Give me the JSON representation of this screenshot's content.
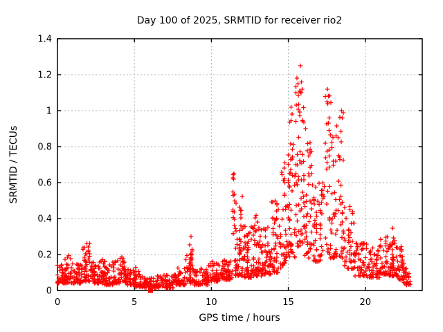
{
  "window": {
    "title": "Day 100 of 2025, SRMTID for receiver rio2"
  },
  "chart_data": {
    "type": "scatter",
    "title": "Day 100 of 2025, SRMTID for receiver rio2",
    "xlabel": "GPS time / hours",
    "ylabel": "SRMTID / TECUs",
    "xlim": [
      0,
      23.7
    ],
    "ylim": [
      0,
      1.4
    ],
    "xticks": [
      0,
      5,
      10,
      15,
      20
    ],
    "xtick_labels": [
      "0",
      "5",
      "10",
      "15",
      "20"
    ],
    "yticks": [
      0,
      0.2,
      0.4,
      0.6,
      0.8,
      1,
      1.2,
      1.4
    ],
    "ytick_labels": [
      "0",
      "0.2",
      "0.4",
      "0.6",
      "0.8",
      "1",
      "1.2",
      "1.4"
    ],
    "grid": true,
    "legend": "none",
    "marker": "plus",
    "marker_color": "#ff0000",
    "grid_color": "#b0b0b0",
    "border_color": "#000000",
    "series_name": "SRMTID for receiver rio2",
    "clusters_format": [
      "x_start_hours",
      "x_end_hours",
      "n_points",
      "y_min_TECU",
      "y_max_TECU",
      "low_bias_exponent"
    ],
    "clusters": [
      [
        0.0,
        0.45,
        35,
        0.04,
        0.16,
        2.0
      ],
      [
        0.45,
        0.95,
        40,
        0.04,
        0.2,
        2.2
      ],
      [
        0.95,
        1.55,
        45,
        0.04,
        0.15,
        2.0
      ],
      [
        1.55,
        2.1,
        45,
        0.05,
        0.27,
        2.0
      ],
      [
        2.1,
        2.55,
        35,
        0.04,
        0.16,
        2.0
      ],
      [
        2.55,
        3.05,
        38,
        0.04,
        0.2,
        2.2
      ],
      [
        3.05,
        3.6,
        42,
        0.03,
        0.16,
        2.0
      ],
      [
        3.6,
        4.05,
        32,
        0.04,
        0.19,
        2.0
      ],
      [
        4.05,
        4.4,
        26,
        0.05,
        0.22,
        2.0
      ],
      [
        4.4,
        5.1,
        50,
        0.03,
        0.13,
        2.0
      ],
      [
        5.1,
        5.6,
        35,
        0.02,
        0.11,
        2.0
      ],
      [
        5.6,
        6.6,
        65,
        0.015,
        0.08,
        1.8
      ],
      [
        6.6,
        7.6,
        65,
        0.015,
        0.09,
        1.8
      ],
      [
        7.6,
        8.3,
        48,
        0.03,
        0.13,
        2.0
      ],
      [
        8.3,
        8.85,
        38,
        0.04,
        0.2,
        2.2
      ],
      [
        8.6,
        8.78,
        12,
        0.12,
        0.3,
        1.2
      ],
      [
        8.85,
        9.8,
        60,
        0.03,
        0.13,
        2.0
      ],
      [
        9.8,
        10.6,
        55,
        0.05,
        0.16,
        2.0
      ],
      [
        10.6,
        11.35,
        55,
        0.06,
        0.2,
        2.0
      ],
      [
        11.38,
        11.55,
        16,
        0.12,
        0.66,
        1.2
      ],
      [
        11.55,
        12.05,
        48,
        0.08,
        0.4,
        2.2
      ],
      [
        11.82,
        11.97,
        10,
        0.2,
        0.56,
        1.2
      ],
      [
        12.05,
        12.7,
        55,
        0.07,
        0.38,
        2.4
      ],
      [
        12.7,
        13.3,
        50,
        0.08,
        0.42,
        2.4
      ],
      [
        13.3,
        13.9,
        50,
        0.09,
        0.38,
        2.2
      ],
      [
        13.9,
        14.5,
        50,
        0.1,
        0.52,
        2.2
      ],
      [
        14.5,
        15.0,
        46,
        0.14,
        0.72,
        1.8
      ],
      [
        15.0,
        15.45,
        42,
        0.18,
        1.02,
        1.6
      ],
      [
        15.45,
        15.78,
        32,
        0.22,
        1.18,
        1.5
      ],
      [
        15.78,
        16.05,
        28,
        0.25,
        1.2,
        1.6
      ],
      [
        16.05,
        16.55,
        40,
        0.18,
        0.92,
        1.8
      ],
      [
        16.55,
        17.25,
        52,
        0.16,
        0.6,
        2.0
      ],
      [
        17.25,
        17.75,
        36,
        0.2,
        1.13,
        1.5
      ],
      [
        17.75,
        18.3,
        40,
        0.18,
        0.95,
        1.8
      ],
      [
        18.3,
        18.65,
        26,
        0.18,
        1.0,
        1.6
      ],
      [
        18.65,
        19.3,
        46,
        0.12,
        0.5,
        2.0
      ],
      [
        19.3,
        20.1,
        55,
        0.08,
        0.28,
        2.0
      ],
      [
        20.1,
        20.9,
        55,
        0.07,
        0.24,
        2.0
      ],
      [
        20.9,
        21.5,
        45,
        0.09,
        0.3,
        2.0
      ],
      [
        21.68,
        21.85,
        12,
        0.14,
        0.35,
        1.2
      ],
      [
        21.5,
        22.1,
        45,
        0.08,
        0.28,
        2.0
      ],
      [
        22.1,
        22.5,
        32,
        0.06,
        0.25,
        2.2
      ],
      [
        22.5,
        22.9,
        30,
        0.03,
        0.13,
        1.8
      ]
    ],
    "peak_points": [
      [
        15.78,
        1.25
      ],
      [
        15.55,
        1.18
      ],
      [
        15.62,
        1.15
      ],
      [
        15.5,
        1.1
      ],
      [
        15.85,
        1.16
      ],
      [
        15.9,
        1.12
      ],
      [
        15.18,
        1.02
      ],
      [
        15.25,
        0.98
      ],
      [
        17.55,
        1.12
      ],
      [
        17.6,
        1.08
      ],
      [
        17.52,
        1.05
      ],
      [
        18.45,
        1.0
      ],
      [
        18.5,
        0.96
      ],
      [
        16.12,
        0.9
      ],
      [
        11.47,
        0.65
      ],
      [
        11.44,
        0.62
      ],
      [
        8.68,
        0.3
      ]
    ],
    "square_point": {
      "x": 6.05,
      "y": 0.0
    }
  }
}
